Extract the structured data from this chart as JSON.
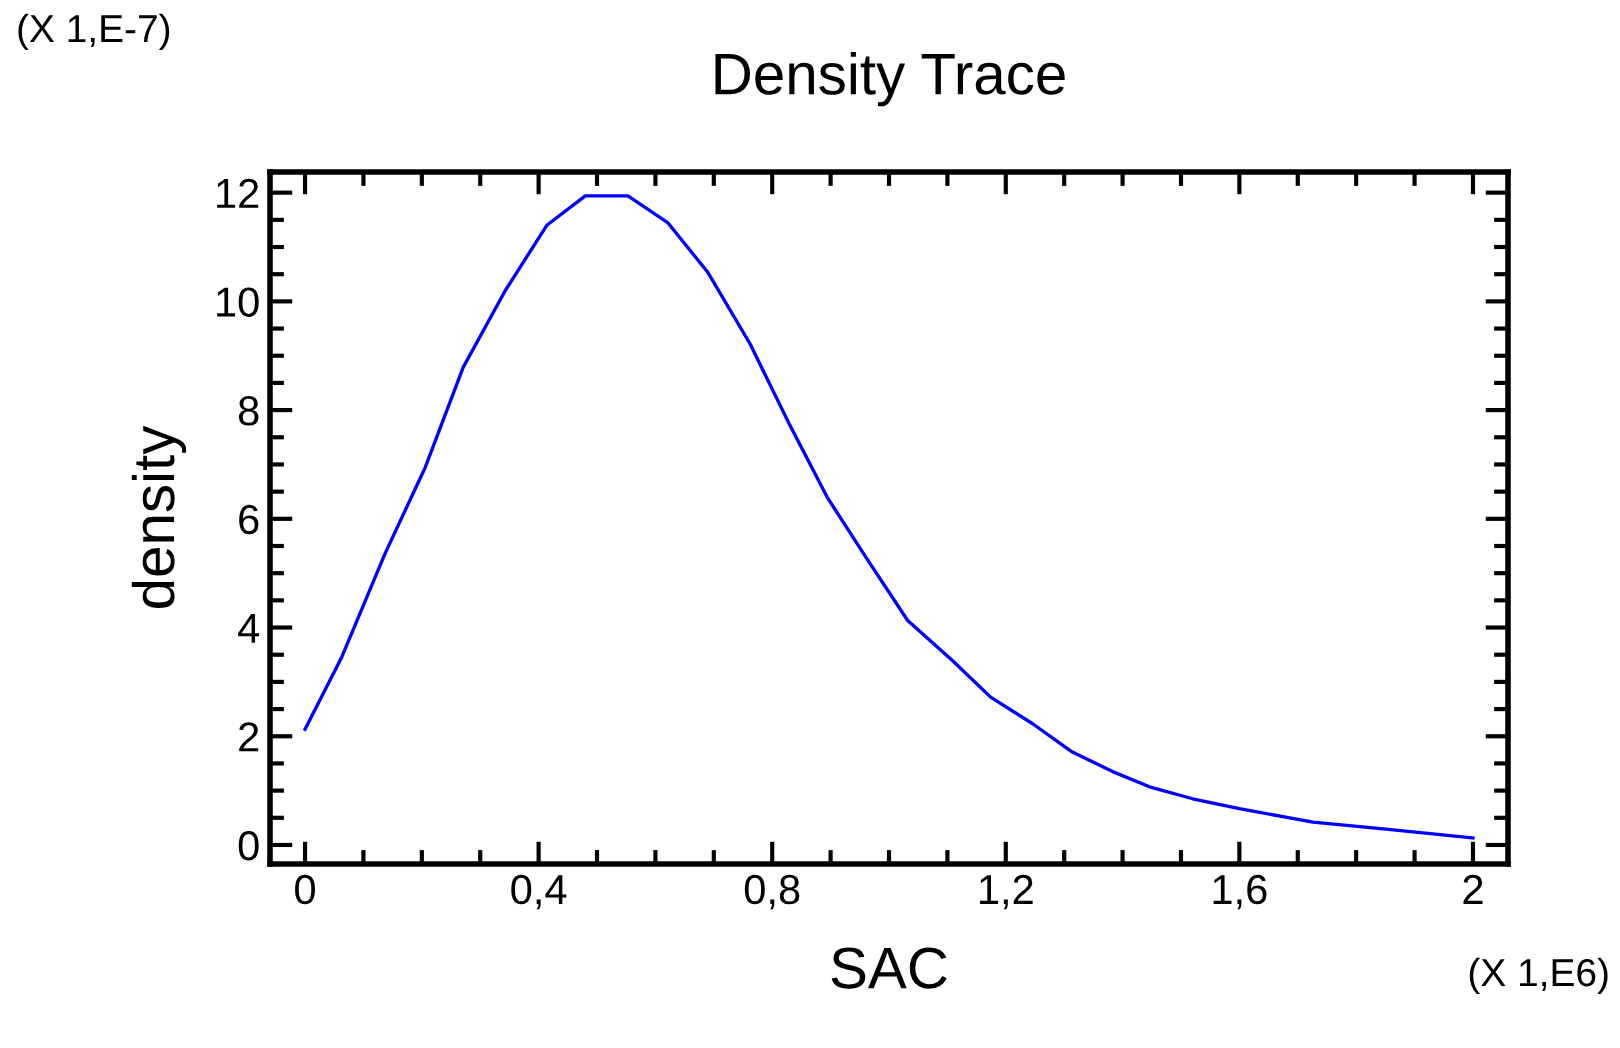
{
  "chart_data": {
    "type": "line",
    "title": "Density Trace",
    "xlabel": "SAC",
    "ylabel": "density",
    "annotations": [
      "(X 1,E-7)",
      "(X 1,E6)"
    ],
    "series": [
      {
        "color": "#0000ff",
        "x": [
          0,
          0.063,
          0.137,
          0.206,
          0.271,
          0.343,
          0.414,
          0.48,
          0.553,
          0.621,
          0.69,
          0.762,
          0.829,
          0.894,
          0.96,
          1.032,
          1.109,
          1.174,
          1.246,
          1.314,
          1.383,
          1.446,
          1.52,
          1.6,
          1.726,
          1.851,
          2.0
        ],
        "values": [
          2.13,
          3.46,
          5.36,
          6.95,
          8.79,
          10.2,
          11.4,
          11.94,
          11.94,
          11.45,
          10.53,
          9.22,
          7.75,
          6.4,
          5.3,
          4.13,
          3.39,
          2.72,
          2.23,
          1.71,
          1.35,
          1.07,
          0.85,
          0.67,
          0.42,
          0.29,
          0.13
        ]
      }
    ],
    "xlim": [
      -0.06,
      2.06
    ],
    "ylim": [
      -0.35,
      12.38
    ],
    "xticks": [
      0,
      {
        "value": 0.4,
        "label": "0,4"
      },
      {
        "value": 0.8,
        "label": "0,8"
      },
      {
        "value": 1.2,
        "label": "1,2"
      },
      {
        "value": 1.6,
        "label": "1,6"
      },
      2
    ],
    "yticks": [
      0,
      2,
      4,
      6,
      8,
      10,
      12
    ],
    "grid": false,
    "legend": false,
    "marker": "none",
    "line_style": "solid"
  }
}
